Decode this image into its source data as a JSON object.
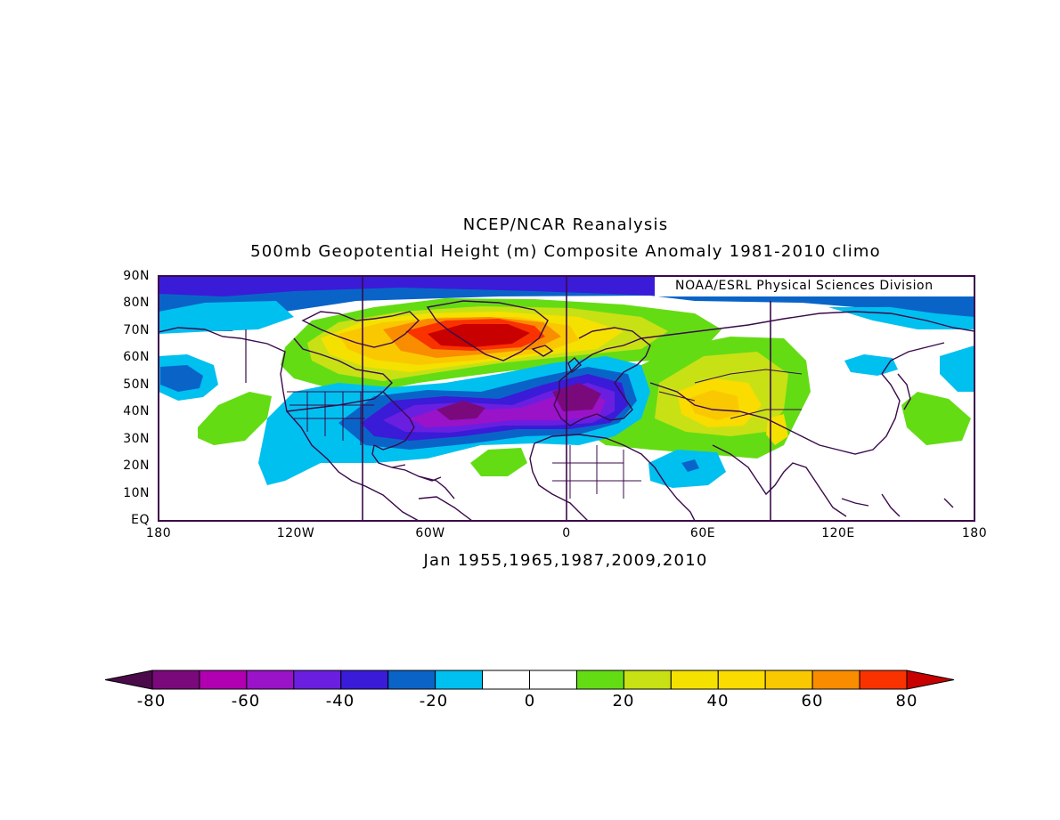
{
  "title": "NCEP/NCAR Reanalysis",
  "subtitle_top": "500mb Geopotential Height (m) Composite Anomaly 1981-2010 climo",
  "credit": "NOAA/ESRL Physical Sciences Division",
  "period_label": "Jan 1955,1965,1987,2009,2010",
  "y_ticks": [
    "90N",
    "80N",
    "70N",
    "60N",
    "50N",
    "40N",
    "30N",
    "20N",
    "10N",
    "EQ"
  ],
  "x_ticks": [
    "180",
    "120W",
    "60W",
    "0",
    "60E",
    "120E",
    "180"
  ],
  "colorbar": {
    "labels": [
      "-80",
      "-60",
      "-40",
      "-20",
      "0",
      "20",
      "40",
      "60",
      "80"
    ],
    "colors": [
      "#4b0a4a",
      "#7a0a7c",
      "#b000b0",
      "#9a13c9",
      "#6a1fe0",
      "#3a1bd8",
      "#0a64c8",
      "#00c0f0",
      "#ffffff",
      "#ffffff",
      "#64dc14",
      "#c8e114",
      "#f5e100",
      "#fadc00",
      "#fac800",
      "#fa8c00",
      "#fa3200",
      "#c80000"
    ]
  },
  "palette": {
    "frame": "#3a0a4a",
    "coast": "#3a0a4a"
  }
}
